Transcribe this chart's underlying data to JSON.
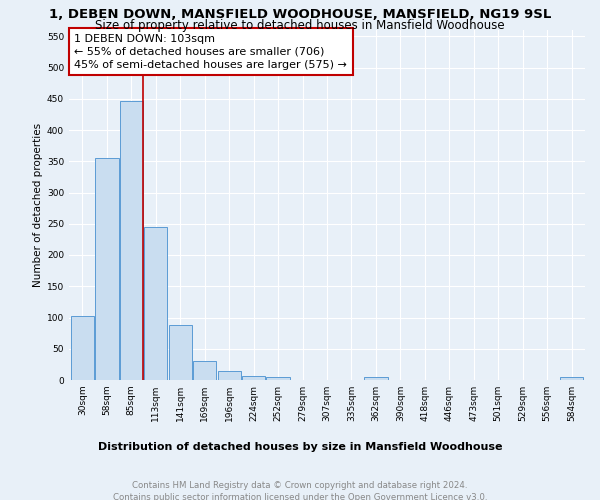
{
  "title": "1, DEBEN DOWN, MANSFIELD WOODHOUSE, MANSFIELD, NG19 9SL",
  "subtitle": "Size of property relative to detached houses in Mansfield Woodhouse",
  "xlabel": "Distribution of detached houses by size in Mansfield Woodhouse",
  "ylabel": "Number of detached properties",
  "footnote": "Contains HM Land Registry data © Crown copyright and database right 2024.\nContains public sector information licensed under the Open Government Licence v3.0.",
  "categories": [
    "30sqm",
    "58sqm",
    "85sqm",
    "113sqm",
    "141sqm",
    "169sqm",
    "196sqm",
    "224sqm",
    "252sqm",
    "279sqm",
    "307sqm",
    "335sqm",
    "362sqm",
    "390sqm",
    "418sqm",
    "446sqm",
    "473sqm",
    "501sqm",
    "529sqm",
    "556sqm",
    "584sqm"
  ],
  "values": [
    103,
    355,
    447,
    245,
    88,
    30,
    15,
    7,
    5,
    0,
    0,
    0,
    5,
    0,
    0,
    0,
    0,
    0,
    0,
    0,
    5
  ],
  "bar_color": "#c9ddf0",
  "bar_edge_color": "#5b9bd5",
  "vline_index": 2,
  "vline_color": "#c00000",
  "annotation_line1": "1 DEBEN DOWN: 103sqm",
  "annotation_line2": "← 55% of detached houses are smaller (706)",
  "annotation_line3": "45% of semi-detached houses are larger (575) →",
  "annotation_box_color": "#ffffff",
  "annotation_box_edge": "#c00000",
  "ylim": [
    0,
    560
  ],
  "yticks": [
    0,
    50,
    100,
    150,
    200,
    250,
    300,
    350,
    400,
    450,
    500,
    550
  ],
  "background_color": "#e8f0f8",
  "grid_color": "#ffffff",
  "title_fontsize": 9.5,
  "subtitle_fontsize": 8.5,
  "xlabel_fontsize": 8,
  "ylabel_fontsize": 7.5,
  "tick_fontsize": 6.5,
  "annotation_fontsize": 8,
  "footnote_fontsize": 6.2
}
